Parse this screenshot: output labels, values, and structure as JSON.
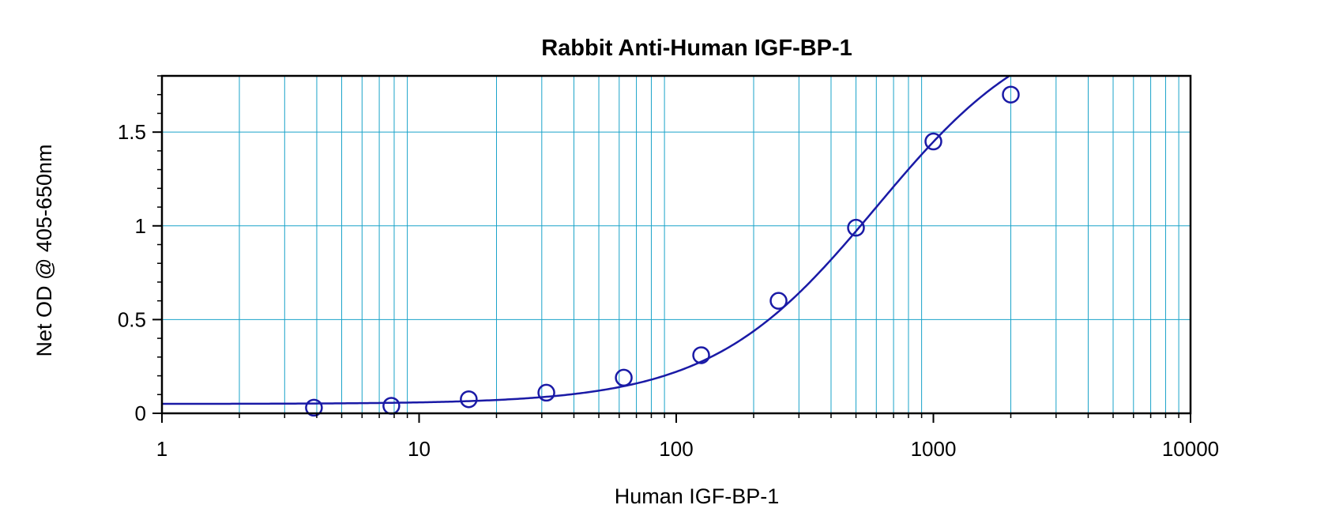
{
  "chart_data": {
    "type": "scatter",
    "title": "Rabbit Anti-Human IGF-BP-1",
    "xlabel": "Human IGF-BP-1",
    "ylabel": "Net OD @ 405-650nm",
    "x_scale": "log",
    "xlim": [
      1,
      10000
    ],
    "ylim": [
      0,
      1.8
    ],
    "x_ticks": [
      "1",
      "10",
      "100",
      "1000",
      "10000"
    ],
    "y_ticks": [
      "0",
      "0.5",
      "1",
      "1.5"
    ],
    "grid": true,
    "series": [
      {
        "marker": "open-circle",
        "x": [
          3.9,
          7.8,
          15.6,
          31.25,
          62.5,
          125,
          250,
          500,
          1000,
          2000
        ],
        "y": [
          0.03,
          0.04,
          0.075,
          0.11,
          0.19,
          0.31,
          0.6,
          0.99,
          1.45,
          1.7
        ]
      }
    ],
    "fit_curve": {
      "type": "4PL",
      "bottom": 0.05,
      "top": 2.15,
      "ec50": 600,
      "hill": 1.35
    },
    "colors": {
      "data": "#1a1aa6",
      "grid": "#1aa3c9",
      "axes": "#000000"
    }
  }
}
